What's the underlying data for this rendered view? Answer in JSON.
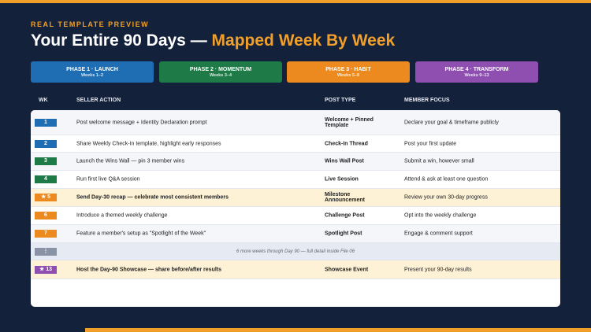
{
  "header": {
    "eyebrow": "REAL TEMPLATE PREVIEW",
    "title": "Your Entire 90 Days — ",
    "title_accent": "Mapped Week By Week"
  },
  "phases": [
    {
      "name": "PHASE 1 · LAUNCH",
      "weeks": "Weeks 1–2",
      "color": "#1f6db3"
    },
    {
      "name": "PHASE 2 · MOMENTUM",
      "weeks": "Weeks 3–4",
      "color": "#1e7a46"
    },
    {
      "name": "PHASE 3 · HABIT",
      "weeks": "Weeks 5–8",
      "color": "#ec8a1f"
    },
    {
      "name": "PHASE 4 · TRANSFORM",
      "weeks": "Weeks 9–13",
      "color": "#8e4fb0"
    }
  ],
  "table": {
    "columns": [
      "WK",
      "SELLER ACTION",
      "POST TYPE",
      "MEMBER FOCUS"
    ],
    "rows": [
      {
        "wk": "1",
        "phase": 0,
        "action": "Post welcome message + Identity Declaration prompt",
        "post": "Welcome + Pinned Template",
        "focus": "Declare your goal & timeframe publicly"
      },
      {
        "wk": "2",
        "phase": 0,
        "action": "Share Weekly Check-In template, highlight early responses",
        "post": "Check-In Thread",
        "focus": "Post your first update"
      },
      {
        "wk": "3",
        "phase": 1,
        "action": "Launch the Wins Wall — pin 3 member wins",
        "post": "Wins Wall Post",
        "focus": "Submit a win, however small"
      },
      {
        "wk": "4",
        "phase": 1,
        "action": "Run first live Q&A session",
        "post": "Live Session",
        "focus": "Attend & ask at least one question"
      },
      {
        "wk": "★ 5",
        "phase": 2,
        "highlight": true,
        "action": "Send Day-30 recap — celebrate most consistent members",
        "post": "Milestone Announcement",
        "focus": "Review your own 30-day progress"
      },
      {
        "wk": "6",
        "phase": 2,
        "action": "Introduce a themed weekly challenge",
        "post": "Challenge Post",
        "focus": "Opt into the weekly challenge"
      },
      {
        "wk": "7",
        "phase": 2,
        "action": "Feature a member's setup as \"Spotlight of the Week\"",
        "post": "Spotlight Post",
        "focus": "Engage & comment support"
      },
      {
        "wk": "⋮",
        "color": "#8a93a6",
        "note": "6 more weeks through Day 90 — full detail inside File 06"
      },
      {
        "wk": "★ 13",
        "phase": 3,
        "highlight": true,
        "action": "Host the Day-90 Showcase — share before/after results",
        "post": "Showcase Event",
        "focus": "Present your 90-day results"
      }
    ]
  }
}
